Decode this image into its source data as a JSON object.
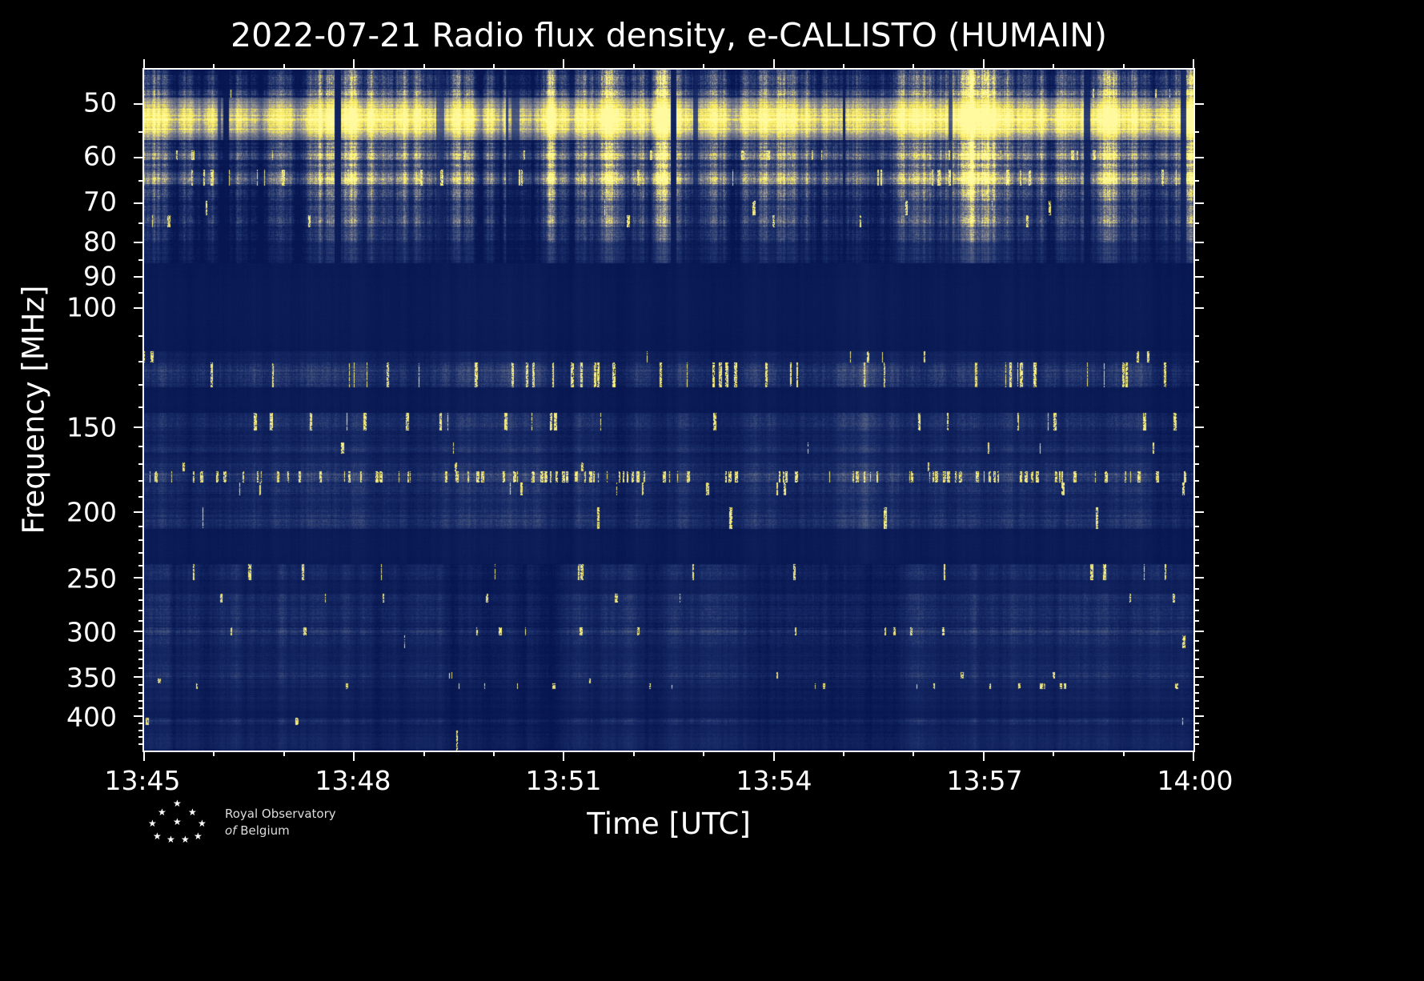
{
  "title": "2022-07-21 Radio flux density, e-CALLISTO (HUMAIN)",
  "axes": {
    "xlabel": "Time [UTC]",
    "ylabel": "Frequency [MHz]"
  },
  "footer": {
    "logo_line1": "Royal Observatory",
    "logo_line2_italic": "of",
    "logo_line2": "Belgium",
    "star": "★"
  },
  "chart_data": {
    "type": "heatmap",
    "title": "2022-07-21 Radio flux density, e-CALLISTO (HUMAIN)",
    "xlabel": "Time [UTC]",
    "ylabel": "Frequency [MHz]",
    "x_ticks": [
      "13:45",
      "13:48",
      "13:51",
      "13:54",
      "13:57",
      "14:00"
    ],
    "x_minor_count": 15,
    "x_major_every": 3,
    "y_ticks": [
      50,
      60,
      70,
      80,
      90,
      100,
      150,
      200,
      250,
      300,
      350,
      400
    ],
    "y_minor_ticks": [
      55,
      65,
      75,
      85,
      95,
      110,
      120,
      130,
      140,
      160,
      170,
      180,
      190,
      210,
      220,
      230,
      240,
      260,
      270,
      280,
      290,
      310,
      320,
      330,
      340,
      360,
      370,
      380,
      390,
      410,
      420,
      430,
      440
    ],
    "y_scale": "log",
    "freq_min": 44.5,
    "freq_max": 450,
    "time_start": "13:45",
    "time_end": "14:00",
    "background": "#000000",
    "text_color": "#ffffff",
    "colormap": [
      [
        0.0,
        [
          7,
          22,
          80
        ]
      ],
      [
        0.28,
        [
          26,
          46,
          106
        ]
      ],
      [
        0.5,
        [
          70,
          84,
          124
        ]
      ],
      [
        0.65,
        [
          120,
          122,
          136
        ]
      ],
      [
        0.78,
        [
          176,
          172,
          152
        ]
      ],
      [
        0.88,
        [
          248,
          232,
          80
        ]
      ],
      [
        1.0,
        [
          255,
          250,
          160
        ]
      ]
    ],
    "bands": [
      {
        "f0": 44.5,
        "f1": 47.5,
        "base": 0.42,
        "amp": 0.28,
        "rowVar": 0.3,
        "spike": 0,
        "group": 0
      },
      {
        "f0": 47.5,
        "f1": 49,
        "base": 0.6,
        "amp": 0.25,
        "rowVar": 0.2,
        "spike": 0.01,
        "group": 0
      },
      {
        "f0": 49,
        "f1": 56.5,
        "base": 0.97,
        "amp": 0.12,
        "rowVar": 0.1,
        "spike": 0,
        "group": 0
      },
      {
        "f0": 56.5,
        "f1": 58.5,
        "base": 0.5,
        "amp": 0.25,
        "rowVar": 0.25,
        "spike": 0,
        "group": 0
      },
      {
        "f0": 58.5,
        "f1": 60.5,
        "base": 0.68,
        "amp": 0.22,
        "rowVar": 0.2,
        "spike": 0.01,
        "group": 0
      },
      {
        "f0": 60.5,
        "f1": 62.5,
        "base": 0.45,
        "amp": 0.25,
        "rowVar": 0.25,
        "spike": 0,
        "group": 0
      },
      {
        "f0": 62.5,
        "f1": 66,
        "base": 0.72,
        "amp": 0.22,
        "rowVar": 0.2,
        "spike": 0.02,
        "group": 0
      },
      {
        "f0": 66,
        "f1": 69.5,
        "base": 0.45,
        "amp": 0.26,
        "rowVar": 0.3,
        "spike": 0,
        "group": 0
      },
      {
        "f0": 69.5,
        "f1": 73,
        "base": 0.34,
        "amp": 0.22,
        "rowVar": 0.3,
        "spike": 0.004,
        "group": 0
      },
      {
        "f0": 73,
        "f1": 76,
        "base": 0.4,
        "amp": 0.24,
        "rowVar": 0.3,
        "spike": 0.008,
        "group": 0
      },
      {
        "f0": 76,
        "f1": 80,
        "base": 0.3,
        "amp": 0.2,
        "rowVar": 0.3,
        "spike": 0,
        "group": 0
      },
      {
        "f0": 80,
        "f1": 86,
        "base": 0.2,
        "amp": 0.14,
        "rowVar": 0.3,
        "spike": 0,
        "group": 0
      },
      {
        "f0": 86,
        "f1": 116,
        "base": 0.06,
        "amp": 0.035,
        "rowVar": 0.1,
        "spike": 0,
        "group": 1
      },
      {
        "f0": 116,
        "f1": 120.5,
        "base": 0.16,
        "amp": 0.1,
        "rowVar": 0.25,
        "spike": 0.003,
        "group": 1
      },
      {
        "f0": 120.5,
        "f1": 131,
        "base": 0.28,
        "amp": 0.18,
        "rowVar": 0.35,
        "spike": 0.03,
        "group": 1
      },
      {
        "f0": 131,
        "f1": 143,
        "base": 0.06,
        "amp": 0.04,
        "rowVar": 0.1,
        "spike": 0,
        "group": 1
      },
      {
        "f0": 143,
        "f1": 151.5,
        "base": 0.26,
        "amp": 0.16,
        "rowVar": 0.3,
        "spike": 0.012,
        "group": 1
      },
      {
        "f0": 151.5,
        "f1": 158,
        "base": 0.17,
        "amp": 0.12,
        "rowVar": 0.3,
        "spike": 0.002,
        "group": 1
      },
      {
        "f0": 158,
        "f1": 164,
        "base": 0.22,
        "amp": 0.13,
        "rowVar": 0.3,
        "spike": 0.002,
        "group": 1
      },
      {
        "f0": 164,
        "f1": 169,
        "base": 0.14,
        "amp": 0.1,
        "rowVar": 0.3,
        "spike": 0,
        "group": 1
      },
      {
        "f0": 169,
        "f1": 174,
        "base": 0.24,
        "amp": 0.14,
        "rowVar": 0.3,
        "spike": 0.004,
        "group": 1
      },
      {
        "f0": 174,
        "f1": 181,
        "base": 0.34,
        "amp": 0.2,
        "rowVar": 0.3,
        "spike": 0.1,
        "group": 1
      },
      {
        "f0": 181,
        "f1": 189,
        "base": 0.24,
        "amp": 0.15,
        "rowVar": 0.3,
        "spike": 0.006,
        "group": 1
      },
      {
        "f0": 189,
        "f1": 197,
        "base": 0.2,
        "amp": 0.13,
        "rowVar": 0.3,
        "spike": 0.002,
        "group": 1
      },
      {
        "f0": 197,
        "f1": 212,
        "base": 0.24,
        "amp": 0.15,
        "rowVar": 0.35,
        "spike": 0.003,
        "group": 1
      },
      {
        "f0": 212,
        "f1": 239,
        "base": 0.065,
        "amp": 0.04,
        "rowVar": 0.1,
        "spike": 0,
        "group": 1
      },
      {
        "f0": 239,
        "f1": 252,
        "base": 0.2,
        "amp": 0.14,
        "rowVar": 0.3,
        "spike": 0.01,
        "group": 2
      },
      {
        "f0": 252,
        "f1": 264,
        "base": 0.11,
        "amp": 0.08,
        "rowVar": 0.25,
        "spike": 0,
        "group": 2
      },
      {
        "f0": 264,
        "f1": 272,
        "base": 0.24,
        "amp": 0.14,
        "rowVar": 0.3,
        "spike": 0.003,
        "group": 2
      },
      {
        "f0": 272,
        "f1": 296,
        "base": 0.21,
        "amp": 0.14,
        "rowVar": 0.35,
        "spike": 0.002,
        "group": 2
      },
      {
        "f0": 296,
        "f1": 304,
        "base": 0.28,
        "amp": 0.16,
        "rowVar": 0.35,
        "spike": 0.012,
        "group": 2
      },
      {
        "f0": 304,
        "f1": 318,
        "base": 0.21,
        "amp": 0.13,
        "rowVar": 0.3,
        "spike": 0.002,
        "group": 2
      },
      {
        "f0": 318,
        "f1": 331,
        "base": 0.15,
        "amp": 0.1,
        "rowVar": 0.3,
        "spike": 0,
        "group": 2
      },
      {
        "f0": 331,
        "f1": 345,
        "base": 0.18,
        "amp": 0.12,
        "rowVar": 0.3,
        "spike": 0.001,
        "group": 2
      },
      {
        "f0": 345,
        "f1": 352,
        "base": 0.24,
        "amp": 0.14,
        "rowVar": 0.3,
        "spike": 0.003,
        "group": 2
      },
      {
        "f0": 352,
        "f1": 358,
        "base": 0.19,
        "amp": 0.12,
        "rowVar": 0.3,
        "spike": 0.002,
        "group": 2
      },
      {
        "f0": 358,
        "f1": 365,
        "base": 0.14,
        "amp": 0.1,
        "rowVar": 0.3,
        "spike": 0.015,
        "group": 2
      },
      {
        "f0": 365,
        "f1": 373,
        "base": 0.12,
        "amp": 0.09,
        "rowVar": 0.25,
        "spike": 0,
        "group": 2
      },
      {
        "f0": 373,
        "f1": 381,
        "base": 0.15,
        "amp": 0.1,
        "rowVar": 0.3,
        "spike": 0.001,
        "group": 2
      },
      {
        "f0": 381,
        "f1": 395,
        "base": 0.1,
        "amp": 0.07,
        "rowVar": 0.25,
        "spike": 0,
        "group": 2
      },
      {
        "f0": 395,
        "f1": 402,
        "base": 0.07,
        "amp": 0.05,
        "rowVar": 0.2,
        "spike": 0,
        "group": 2
      },
      {
        "f0": 402,
        "f1": 412,
        "base": 0.21,
        "amp": 0.13,
        "rowVar": 0.3,
        "spike": 0.002,
        "group": 2
      },
      {
        "f0": 412,
        "f1": 421,
        "base": 0.12,
        "amp": 0.08,
        "rowVar": 0.25,
        "spike": 0,
        "group": 2
      },
      {
        "f0": 421,
        "f1": 450,
        "base": 0.15,
        "amp": 0.1,
        "rowVar": 0.3,
        "spike": 0.001,
        "group": 2
      }
    ]
  }
}
